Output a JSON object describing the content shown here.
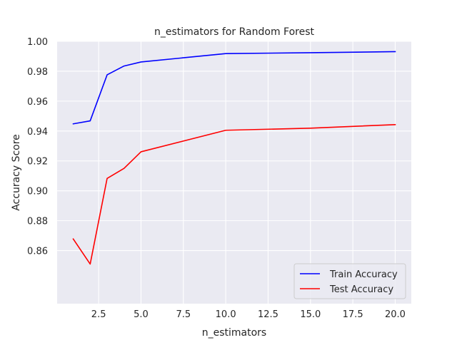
{
  "chart_data": {
    "type": "line",
    "title": "n_estimators for Random Forest",
    "xlabel": "n_estimators",
    "ylabel": "Accuracy Score",
    "xlim": [
      0.05,
      20.95
    ],
    "ylim": [
      0.8245,
      1.0
    ],
    "xticks": [
      2.5,
      5.0,
      7.5,
      10.0,
      12.5,
      15.0,
      17.5,
      20.0
    ],
    "xtick_labels": [
      "2.5",
      "5.0",
      "7.5",
      "10.0",
      "12.5",
      "15.0",
      "17.5",
      "20.0"
    ],
    "yticks": [
      0.86,
      0.88,
      0.9,
      0.92,
      0.94,
      0.96,
      0.98,
      1.0
    ],
    "ytick_labels": [
      "0.86",
      "0.88",
      "0.90",
      "0.92",
      "0.94",
      "0.96",
      "0.98",
      "1.00"
    ],
    "grid": true,
    "legend_position": "lower-right",
    "series": [
      {
        "name": "Train Accuracy",
        "color": "#0000ff",
        "x": [
          1,
          2,
          3,
          4,
          5,
          10,
          15,
          20
        ],
        "y": [
          0.9448,
          0.9468,
          0.9776,
          0.9835,
          0.9862,
          0.9918,
          0.9924,
          0.9931
        ]
      },
      {
        "name": "Test Accuracy",
        "color": "#ff0000",
        "x": [
          1,
          2,
          3,
          4,
          5,
          10,
          15,
          20
        ],
        "y": [
          0.8678,
          0.851,
          0.9083,
          0.915,
          0.9261,
          0.9405,
          0.9419,
          0.9443
        ]
      }
    ]
  }
}
